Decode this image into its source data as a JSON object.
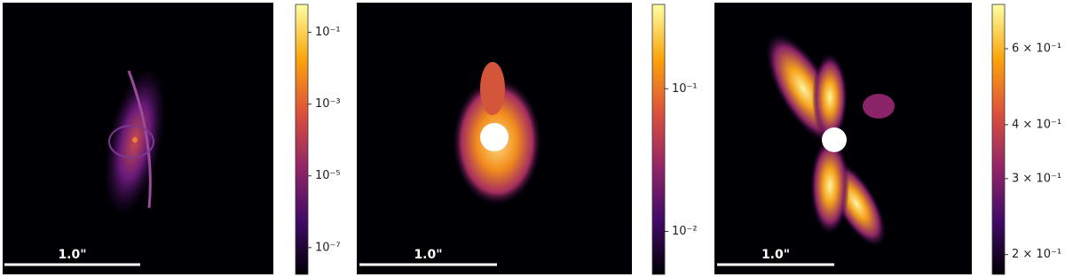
{
  "chart_data": [
    {
      "type": "image",
      "scale_bar_label": "1.0\"",
      "log": true,
      "colormap": [
        "#000004",
        "#420a68",
        "#932667",
        "#dd513a",
        "#fca50a",
        "#fcffa4"
      ],
      "ylim": [
        1.8e-08,
        0.6
      ],
      "yticks": [
        {
          "value": 0.1,
          "label": "10⁻¹"
        },
        {
          "value": 0.001,
          "label": "10⁻³"
        },
        {
          "value": 1e-05,
          "label": "10⁻⁵"
        },
        {
          "value": 1e-07,
          "label": "10⁻⁷"
        }
      ]
    },
    {
      "type": "image",
      "scale_bar_label": "1.0\"",
      "log": true,
      "colormap": [
        "#000004",
        "#420a68",
        "#932667",
        "#dd513a",
        "#fca50a",
        "#fcffa4"
      ],
      "ylim": [
        0.005,
        0.39
      ],
      "yticks": [
        {
          "value": 0.1,
          "label": "10⁻¹"
        },
        {
          "value": 0.01,
          "label": "10⁻²"
        }
      ]
    },
    {
      "type": "image",
      "scale_bar_label": "1.0\"",
      "log": true,
      "colormap": [
        "#000004",
        "#420a68",
        "#932667",
        "#dd513a",
        "#fca50a",
        "#fcffa4"
      ],
      "ylim": [
        0.18,
        0.76
      ],
      "yticks": [
        {
          "value": 0.6,
          "label": "6 × 10⁻¹"
        },
        {
          "value": 0.4,
          "label": "4 × 10⁻¹"
        },
        {
          "value": 0.3,
          "label": "3 × 10⁻¹"
        },
        {
          "value": 0.2,
          "label": "2 × 10⁻¹"
        }
      ]
    }
  ]
}
